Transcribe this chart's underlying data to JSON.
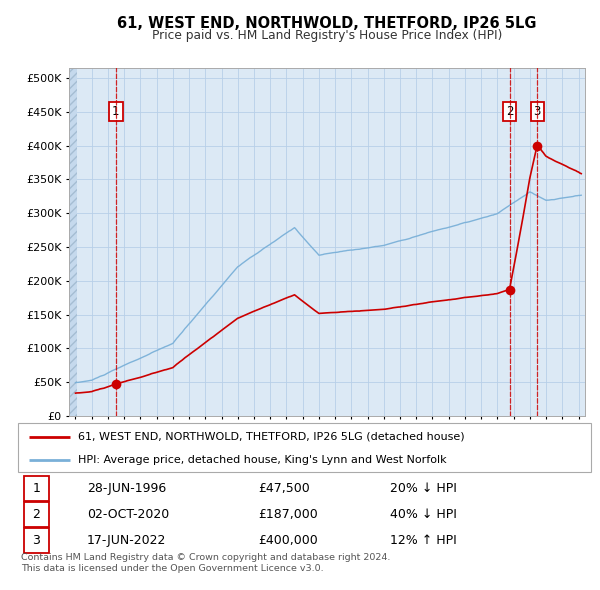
{
  "title": "61, WEST END, NORTHWOLD, THETFORD, IP26 5LG",
  "subtitle": "Price paid vs. HM Land Registry's House Price Index (HPI)",
  "plot_bg_color": "#dce9f5",
  "grid_color": "#b8cfe8",
  "transactions": [
    {
      "num": 1,
      "date_label": "28-JUN-1996",
      "price": 47500,
      "year": 1996.49,
      "hpi_rel": "20% ↓ HPI"
    },
    {
      "num": 2,
      "date_label": "02-OCT-2020",
      "price": 187000,
      "year": 2020.75,
      "hpi_rel": "40% ↓ HPI"
    },
    {
      "num": 3,
      "date_label": "17-JUN-2022",
      "price": 400000,
      "year": 2022.46,
      "hpi_rel": "12% ↑ HPI"
    }
  ],
  "yticks": [
    0,
    50000,
    100000,
    150000,
    200000,
    250000,
    300000,
    350000,
    400000,
    450000,
    500000
  ],
  "ylabels": [
    "£0",
    "£50K",
    "£100K",
    "£150K",
    "£200K",
    "£250K",
    "£300K",
    "£350K",
    "£400K",
    "£450K",
    "£500K"
  ],
  "xmin": 1993.6,
  "xmax": 2025.4,
  "ymin": 0,
  "ymax": 515000,
  "property_color": "#cc0000",
  "hpi_color": "#7ab0d8",
  "legend_label_property": "61, WEST END, NORTHWOLD, THETFORD, IP26 5LG (detached house)",
  "legend_label_hpi": "HPI: Average price, detached house, King's Lynn and West Norfolk",
  "footer1": "Contains HM Land Registry data © Crown copyright and database right 2024.",
  "footer2": "This data is licensed under the Open Government Licence v3.0."
}
